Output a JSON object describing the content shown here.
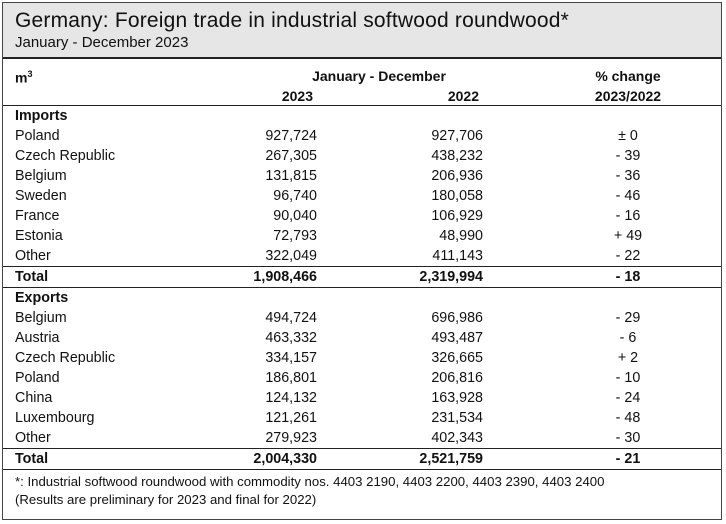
{
  "header": {
    "title": "Germany: Foreign trade in industrial softwood roundwood*",
    "subtitle": "January - December 2023"
  },
  "columns": {
    "unit": "m",
    "unit_sup": "3",
    "period": "January - December",
    "year1": "2023",
    "year2": "2022",
    "pct_label1": "% change",
    "pct_label2": "2023/2022"
  },
  "imports": {
    "label": "Imports",
    "rows": [
      {
        "name": "Poland",
        "v2023": "927,724",
        "v2022": "927,706",
        "pct": "± 0"
      },
      {
        "name": "Czech Republic",
        "v2023": "267,305",
        "v2022": "438,232",
        "pct": "- 39"
      },
      {
        "name": "Belgium",
        "v2023": "131,815",
        "v2022": "206,936",
        "pct": "- 36"
      },
      {
        "name": "Sweden",
        "v2023": "96,740",
        "v2022": "180,058",
        "pct": "- 46"
      },
      {
        "name": "France",
        "v2023": "90,040",
        "v2022": "106,929",
        "pct": "- 16"
      },
      {
        "name": "Estonia",
        "v2023": "72,793",
        "v2022": "48,990",
        "pct": "+ 49"
      },
      {
        "name": "Other",
        "v2023": "322,049",
        "v2022": "411,143",
        "pct": "- 22"
      }
    ],
    "total": {
      "name": "Total",
      "v2023": "1,908,466",
      "v2022": "2,319,994",
      "pct": "- 18"
    }
  },
  "exports": {
    "label": "Exports",
    "rows": [
      {
        "name": "Belgium",
        "v2023": "494,724",
        "v2022": "696,986",
        "pct": "- 29"
      },
      {
        "name": "Austria",
        "v2023": "463,332",
        "v2022": "493,487",
        "pct": "- 6"
      },
      {
        "name": "Czech Republic",
        "v2023": "334,157",
        "v2022": "326,665",
        "pct": "+ 2"
      },
      {
        "name": "Poland",
        "v2023": "186,801",
        "v2022": "206,816",
        "pct": "- 10"
      },
      {
        "name": "China",
        "v2023": "124,132",
        "v2022": "163,928",
        "pct": "- 24"
      },
      {
        "name": "Luxembourg",
        "v2023": "121,261",
        "v2022": "231,534",
        "pct": "- 48"
      },
      {
        "name": "Other",
        "v2023": "279,923",
        "v2022": "402,343",
        "pct": "- 30"
      }
    ],
    "total": {
      "name": "Total",
      "v2023": "2,004,330",
      "v2022": "2,521,759",
      "pct": "- 21"
    }
  },
  "footnote": {
    "line1": "*: Industrial softwood roundwood with commodity nos. 4403 2190, 4403 2200, 4403 2390, 4403 2400",
    "line2": "(Results are preliminary for 2023 and final for 2022)"
  }
}
